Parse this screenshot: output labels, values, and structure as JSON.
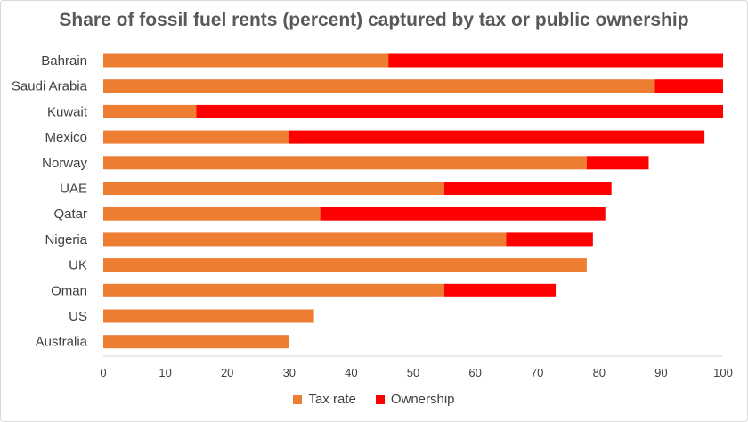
{
  "chart_data": {
    "type": "bar",
    "orientation": "horizontal",
    "stacked": true,
    "title": "Share of fossil fuel rents (percent) captured by tax or public ownership",
    "categories": [
      "Bahrain",
      "Saudi Arabia",
      "Kuwait",
      "Mexico",
      "Norway",
      "UAE",
      "Qatar",
      "Nigeria",
      "UK",
      "Oman",
      "US",
      "Australia"
    ],
    "series": [
      {
        "name": "Tax rate",
        "color": "#ed7d31",
        "values": [
          46,
          89,
          15,
          30,
          78,
          55,
          35,
          65,
          78,
          55,
          34,
          30
        ]
      },
      {
        "name": "Ownership",
        "color": "#ff0000",
        "values": [
          54,
          11,
          85,
          67,
          10,
          27,
          46,
          14,
          0,
          18,
          0,
          0
        ]
      }
    ],
    "xlim": [
      0,
      100
    ],
    "xticks": [
      "0",
      "10",
      "20",
      "30",
      "40",
      "50",
      "60",
      "70",
      "80",
      "90",
      "100"
    ],
    "grid": false,
    "legend_position": "bottom"
  }
}
